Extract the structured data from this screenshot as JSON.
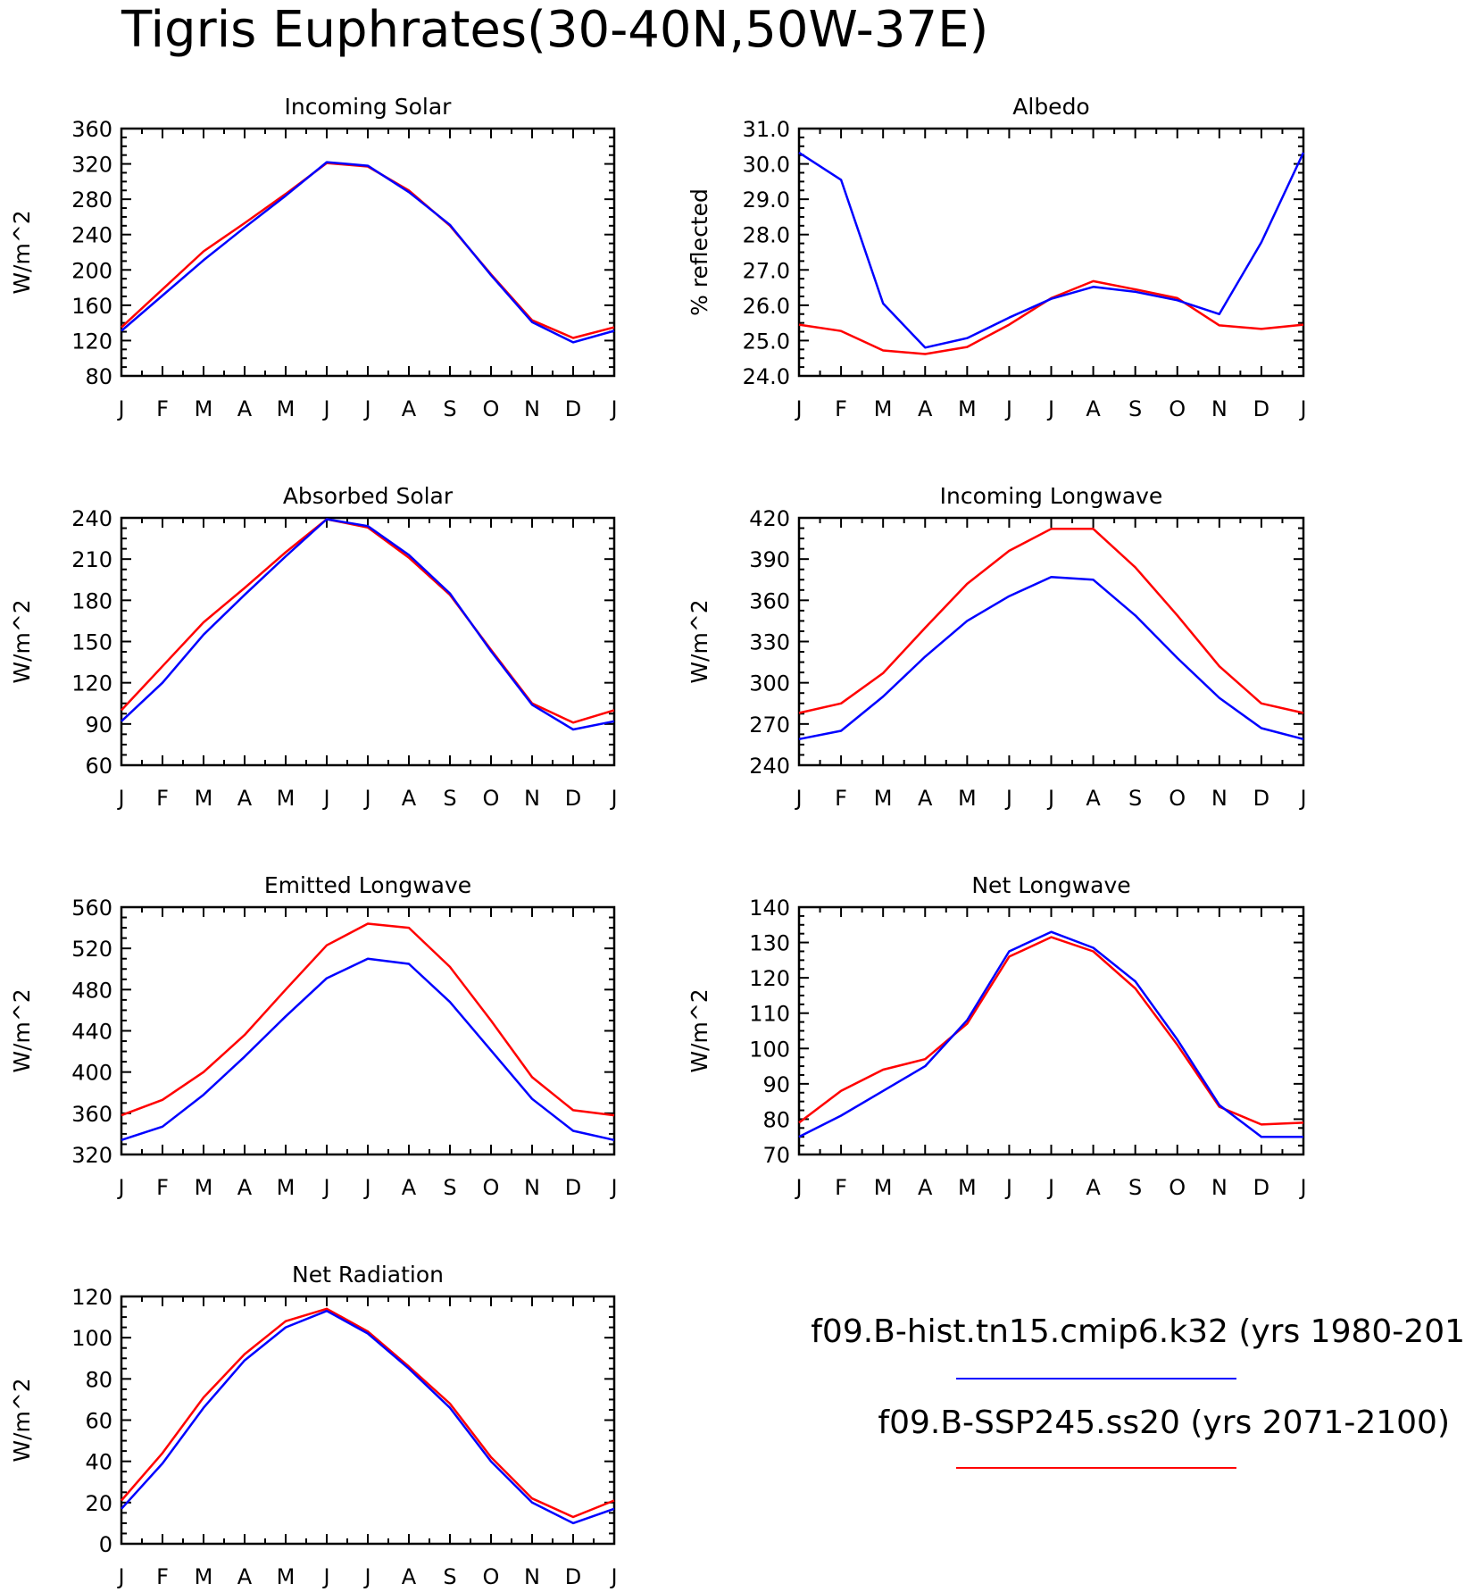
{
  "title": "Tigris Euphrates(30-40N,50W-37E)",
  "months": [
    "J",
    "F",
    "M",
    "A",
    "M",
    "J",
    "J",
    "A",
    "S",
    "O",
    "N",
    "D",
    "J"
  ],
  "legend": [
    {
      "label": "f09.B-hist.tn15.cmip6.k32 (yrs 1980-201",
      "color": "#0000ff"
    },
    {
      "label": "f09.B-SSP245.ss20 (yrs 2071-2100)",
      "color": "#ff0000"
    }
  ],
  "chart_data": [
    {
      "type": "line",
      "title": "Incoming Solar",
      "ylabel": "W/m^2",
      "ylim": [
        80,
        360
      ],
      "yticks": [
        "360",
        "320",
        "280",
        "240",
        "200",
        "160",
        "120",
        "80"
      ],
      "categories": [
        "J",
        "F",
        "M",
        "A",
        "M",
        "J",
        "J",
        "A",
        "S",
        "O",
        "N",
        "D",
        "J"
      ],
      "series": [
        {
          "color": "#ff0000",
          "values": [
            135,
            178,
            221,
            253,
            286,
            321,
            317,
            290,
            250,
            195,
            143,
            123,
            135
          ]
        },
        {
          "color": "#0000ff",
          "values": [
            131,
            171,
            211,
            248,
            284,
            322,
            318,
            288,
            251,
            194,
            141,
            118,
            131
          ]
        }
      ]
    },
    {
      "type": "line",
      "title": "Albedo",
      "ylabel": "% reflected",
      "ylim": [
        24.0,
        31.0
      ],
      "yticks": [
        "31.0",
        "30.0",
        "29.0",
        "28.0",
        "27.0",
        "26.0",
        "25.0",
        "24.0"
      ],
      "categories": [
        "J",
        "F",
        "M",
        "A",
        "M",
        "J",
        "J",
        "A",
        "S",
        "O",
        "N",
        "D",
        "J"
      ],
      "series": [
        {
          "color": "#ff0000",
          "values": [
            25.45,
            25.27,
            24.72,
            24.62,
            24.82,
            25.45,
            26.2,
            26.68,
            26.45,
            26.2,
            25.43,
            25.33,
            25.45
          ]
        },
        {
          "color": "#0000ff",
          "values": [
            30.32,
            29.55,
            26.05,
            24.8,
            25.07,
            25.65,
            26.18,
            26.52,
            26.38,
            26.14,
            25.75,
            27.78,
            30.32
          ]
        }
      ]
    },
    {
      "type": "line",
      "title": "Absorbed Solar",
      "ylabel": "W/m^2",
      "ylim": [
        60,
        240
      ],
      "yticks": [
        "240",
        "210",
        "180",
        "150",
        "120",
        "90",
        "60"
      ],
      "categories": [
        "J",
        "F",
        "M",
        "A",
        "M",
        "J",
        "J",
        "A",
        "S",
        "O",
        "N",
        "D",
        "J"
      ],
      "series": [
        {
          "color": "#ff0000",
          "values": [
            100,
            132,
            164,
            189,
            215,
            239,
            233,
            211,
            184,
            144,
            105,
            91,
            100
          ]
        },
        {
          "color": "#0000ff",
          "values": [
            92,
            120,
            155,
            184,
            212,
            239,
            234,
            213,
            185,
            143,
            104,
            86,
            92
          ]
        }
      ]
    },
    {
      "type": "line",
      "title": "Incoming Longwave",
      "ylabel": "W/m^2",
      "ylim": [
        240,
        420
      ],
      "yticks": [
        "420",
        "390",
        "360",
        "330",
        "300",
        "270",
        "240"
      ],
      "categories": [
        "J",
        "F",
        "M",
        "A",
        "M",
        "J",
        "J",
        "A",
        "S",
        "O",
        "N",
        "D",
        "J"
      ],
      "series": [
        {
          "color": "#ff0000",
          "values": [
            278,
            285,
            307,
            340,
            372,
            396,
            412,
            412,
            384,
            349,
            312,
            285,
            278
          ]
        },
        {
          "color": "#0000ff",
          "values": [
            259,
            265,
            290,
            319,
            345,
            363,
            377,
            375,
            349,
            318,
            289,
            267,
            259
          ]
        }
      ]
    },
    {
      "type": "line",
      "title": "Emitted Longwave",
      "ylabel": "W/m^2",
      "ylim": [
        320,
        560
      ],
      "yticks": [
        "560",
        "520",
        "480",
        "440",
        "400",
        "360",
        "320"
      ],
      "categories": [
        "J",
        "F",
        "M",
        "A",
        "M",
        "J",
        "J",
        "A",
        "S",
        "O",
        "N",
        "D",
        "J"
      ],
      "series": [
        {
          "color": "#ff0000",
          "values": [
            358,
            373,
            400,
            436,
            480,
            523,
            544,
            540,
            502,
            450,
            395,
            363,
            358
          ]
        },
        {
          "color": "#0000ff",
          "values": [
            334,
            347,
            378,
            415,
            454,
            491,
            510,
            505,
            468,
            421,
            374,
            343,
            334
          ]
        }
      ]
    },
    {
      "type": "line",
      "title": "Net Longwave",
      "ylabel": "W/m^2",
      "ylim": [
        70,
        140
      ],
      "yticks": [
        "140",
        "130",
        "120",
        "110",
        "100",
        "90",
        "80",
        "70"
      ],
      "categories": [
        "J",
        "F",
        "M",
        "A",
        "M",
        "J",
        "J",
        "A",
        "S",
        "O",
        "N",
        "D",
        "J"
      ],
      "series": [
        {
          "color": "#ff0000",
          "values": [
            79,
            88,
            94,
            97,
            107,
            126,
            131.5,
            127.5,
            117,
            101,
            83.5,
            78.5,
            79
          ]
        },
        {
          "color": "#0000ff",
          "values": [
            75,
            81,
            88,
            95,
            108,
            127.5,
            133,
            128.5,
            119,
            102.5,
            84,
            75,
            75
          ]
        }
      ]
    },
    {
      "type": "line",
      "title": "Net Radiation",
      "ylabel": "W/m^2",
      "ylim": [
        0,
        120
      ],
      "yticks": [
        "120",
        "100",
        "80",
        "60",
        "40",
        "20",
        "0"
      ],
      "categories": [
        "J",
        "F",
        "M",
        "A",
        "M",
        "J",
        "J",
        "A",
        "S",
        "O",
        "N",
        "D",
        "J"
      ],
      "series": [
        {
          "color": "#ff0000",
          "values": [
            21,
            44,
            71,
            92,
            108,
            114,
            103,
            86,
            68,
            42,
            22,
            13,
            21
          ]
        },
        {
          "color": "#0000ff",
          "values": [
            17,
            39,
            66,
            89,
            105,
            113,
            102,
            85,
            66,
            40,
            20,
            10,
            17
          ]
        }
      ]
    }
  ]
}
